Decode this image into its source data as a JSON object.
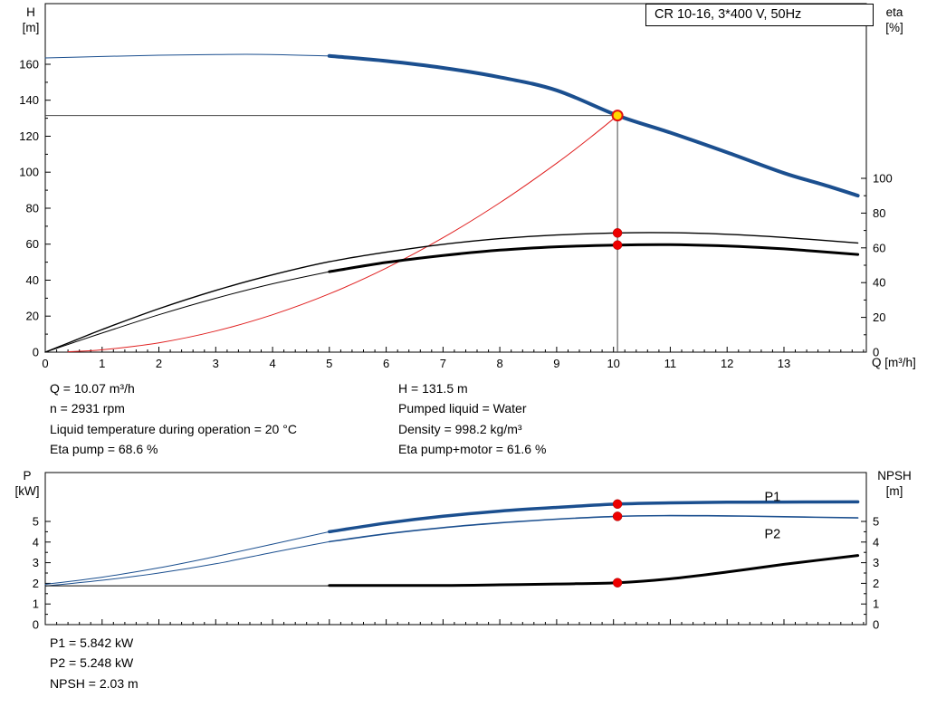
{
  "title_box": "CR 10-16, 3*400 V, 50Hz",
  "info_panel": {
    "left": [
      "Q = 10.07 m³/h",
      "n = 2931 rpm",
      "Liquid temperature during operation = 20 °C",
      "Eta pump = 68.6 %"
    ],
    "right": [
      "H = 131.5 m",
      "Pumped liquid = Water",
      "Density = 998.2 kg/m³",
      "Eta pump+motor = 61.6 %"
    ]
  },
  "results_panel": {
    "lines": [
      "P1 = 5.842 kW",
      "P2 = 5.248 kW",
      "NPSH = 2.03 m"
    ]
  },
  "duty_point": {
    "q_m3h": 10.07,
    "h_m": 131.5,
    "n_rpm": 2931,
    "eta_pump_pct": 68.6,
    "eta_pump_motor_pct": 61.6,
    "p1_kw": 5.842,
    "p2_kw": 5.248,
    "npsh_m": 2.03
  },
  "chart_data": [
    {
      "id": "head",
      "type": "line",
      "title": "CR 10-16, 3*400 V, 50Hz",
      "x_axis": {
        "label": "Q [m³/h]",
        "min": 0,
        "max": 14.45,
        "major_ticks": [
          0,
          1,
          2,
          3,
          4,
          5,
          6,
          7,
          8,
          9,
          10,
          11,
          12,
          13
        ],
        "minor_step": 0.2,
        "minor_max": 14.4,
        "show_labels": true
      },
      "y_left": {
        "name": "H",
        "unit": "[m]",
        "min": 0,
        "max": 193.7,
        "major_ticks": [
          0,
          20,
          40,
          60,
          80,
          100,
          120,
          140,
          160
        ],
        "minor_step": 10,
        "minor_max": 160
      },
      "y_right": {
        "name": "eta",
        "unit": "[%]",
        "min": 0,
        "max": 200.5,
        "major_ticks": [
          0,
          20,
          40,
          60,
          80,
          100
        ],
        "minor_step": 10,
        "minor_max": 100
      },
      "crosshair": {
        "x": 10.07,
        "y": 131.5
      },
      "series": [
        {
          "name": "pump-curve-lead",
          "axis": "left",
          "color": "#1b4f8f",
          "width": 1,
          "points": [
            [
              0,
              163.5
            ],
            [
              1,
              164.3
            ],
            [
              2,
              165.0
            ],
            [
              3,
              165.4
            ],
            [
              3.8,
              165.5
            ],
            [
              5,
              164.6
            ]
          ]
        },
        {
          "name": "pump-curve",
          "axis": "left",
          "color": "#1b4f8f",
          "width": 4,
          "points": [
            [
              5,
              164.6
            ],
            [
              6,
              161.8
            ],
            [
              7,
              158.0
            ],
            [
              8,
              152.8
            ],
            [
              9,
              145.5
            ],
            [
              10.07,
              131.5
            ],
            [
              11,
              122.0
            ],
            [
              12,
              111.0
            ],
            [
              13,
              99.5
            ],
            [
              13.7,
              93.0
            ],
            [
              14.3,
              87.0
            ]
          ]
        },
        {
          "name": "system-curve",
          "axis": "left",
          "color": "#e02020",
          "width": 1,
          "points": [
            [
              0.4,
              0.2
            ],
            [
              1,
              1.3
            ],
            [
              2,
              5.2
            ],
            [
              3,
              11.7
            ],
            [
              4,
              20.8
            ],
            [
              5,
              32.4
            ],
            [
              6,
              46.7
            ],
            [
              7,
              63.6
            ],
            [
              8,
              83.0
            ],
            [
              9,
              105.0
            ],
            [
              9.6,
              119.5
            ],
            [
              10.07,
              131.5
            ]
          ]
        },
        {
          "name": "eta-pump-curve",
          "axis": "right",
          "color": "#000000",
          "width": 1.4,
          "points": [
            [
              0,
              0
            ],
            [
              0.5,
              6.5
            ],
            [
              1,
              13
            ],
            [
              2,
              25
            ],
            [
              3,
              35.5
            ],
            [
              4,
              44.5
            ],
            [
              5,
              52
            ],
            [
              6,
              57.5
            ],
            [
              7,
              62
            ],
            [
              8,
              65.3
            ],
            [
              9,
              67.4
            ],
            [
              10.07,
              68.6
            ],
            [
              11,
              68.7
            ],
            [
              12,
              67.8
            ],
            [
              13,
              66
            ],
            [
              14.3,
              62.8
            ]
          ]
        },
        {
          "name": "eta-total-lead",
          "axis": "right",
          "color": "#000000",
          "width": 1,
          "points": [
            [
              0,
              0
            ],
            [
              0.5,
              5.5
            ],
            [
              1,
              11
            ],
            [
              2,
              21.5
            ],
            [
              3,
              31
            ],
            [
              4,
              39.3
            ],
            [
              5,
              46.3
            ]
          ]
        },
        {
          "name": "eta-total-curve",
          "axis": "right",
          "color": "#000000",
          "width": 3,
          "points": [
            [
              5,
              46.3
            ],
            [
              6,
              51.6
            ],
            [
              7,
              55.6
            ],
            [
              8,
              58.7
            ],
            [
              9,
              60.6
            ],
            [
              10.07,
              61.6
            ],
            [
              11,
              61.8
            ],
            [
              12,
              61.1
            ],
            [
              13,
              59.4
            ],
            [
              14.3,
              56.2
            ]
          ]
        }
      ],
      "labels": [],
      "markers": [
        {
          "name": "duty-point",
          "style": "duty",
          "axis": "left",
          "x": 10.07,
          "y": 131.5
        },
        {
          "name": "eta-pump-point",
          "style": "dot",
          "axis": "right",
          "x": 10.07,
          "y": 68.6
        },
        {
          "name": "eta-total-point",
          "style": "dot",
          "axis": "right",
          "x": 10.07,
          "y": 61.6
        }
      ]
    },
    {
      "id": "power",
      "type": "line",
      "title": "",
      "x_axis": {
        "label": "",
        "min": 0,
        "max": 14.45,
        "major_ticks": [
          0,
          1,
          2,
          3,
          4,
          5,
          6,
          7,
          8,
          9,
          10,
          11,
          12,
          13
        ],
        "minor_step": 0.2,
        "minor_max": 14.4,
        "show_labels": false
      },
      "y_left": {
        "name": "P",
        "unit": "[kW]",
        "min": 0,
        "max": 7.37,
        "major_ticks": [
          0,
          1,
          2,
          3,
          4,
          5
        ],
        "minor_step": 0.5,
        "minor_max": 5
      },
      "y_right": {
        "name": "NPSH",
        "unit": "[m]",
        "min": 0,
        "max": 7.37,
        "major_ticks": [
          0,
          1,
          2,
          3,
          4,
          5
        ],
        "minor_step": 0.5,
        "minor_max": 5
      },
      "series": [
        {
          "name": "p1-lead",
          "axis": "left",
          "color": "#1b4f8f",
          "width": 1,
          "points": [
            [
              0,
              1.95
            ],
            [
              1,
              2.3
            ],
            [
              2,
              2.75
            ],
            [
              3,
              3.3
            ],
            [
              4,
              3.9
            ],
            [
              5,
              4.5
            ]
          ]
        },
        {
          "name": "p1-curve",
          "axis": "left",
          "color": "#1b4f8f",
          "width": 3.5,
          "points": [
            [
              5,
              4.5
            ],
            [
              6,
              4.92
            ],
            [
              7,
              5.25
            ],
            [
              8,
              5.5
            ],
            [
              9,
              5.68
            ],
            [
              10.07,
              5.842
            ],
            [
              11,
              5.9
            ],
            [
              12,
              5.93
            ],
            [
              13,
              5.94
            ],
            [
              14.3,
              5.95
            ]
          ]
        },
        {
          "name": "p2-lead",
          "axis": "left",
          "color": "#1b4f8f",
          "width": 1,
          "points": [
            [
              0,
              1.87
            ],
            [
              1,
              2.15
            ],
            [
              2,
              2.5
            ],
            [
              3,
              2.95
            ],
            [
              4,
              3.5
            ],
            [
              5,
              4.02
            ]
          ]
        },
        {
          "name": "p2-curve",
          "axis": "left",
          "color": "#1b4f8f",
          "width": 1.6,
          "points": [
            [
              5,
              4.02
            ],
            [
              6,
              4.4
            ],
            [
              7,
              4.7
            ],
            [
              8,
              4.93
            ],
            [
              9,
              5.11
            ],
            [
              10.07,
              5.248
            ],
            [
              11,
              5.28
            ],
            [
              12,
              5.27
            ],
            [
              13,
              5.23
            ],
            [
              14.3,
              5.17
            ]
          ]
        },
        {
          "name": "npsh-lead",
          "axis": "right",
          "color": "#000000",
          "width": 1,
          "points": [
            [
              0,
              1.88
            ],
            [
              2.5,
              1.88
            ],
            [
              5,
              1.88
            ]
          ]
        },
        {
          "name": "npsh-curve",
          "axis": "right",
          "color": "#000000",
          "width": 3,
          "points": [
            [
              5,
              1.9
            ],
            [
              7,
              1.9
            ],
            [
              8,
              1.93
            ],
            [
              9,
              1.97
            ],
            [
              10.07,
              2.03
            ],
            [
              11,
              2.22
            ],
            [
              12,
              2.55
            ],
            [
              13,
              2.92
            ],
            [
              14.3,
              3.35
            ]
          ]
        }
      ],
      "labels": [
        {
          "text": "P1",
          "x": 12.8,
          "y": 6.2,
          "axis": "left",
          "color": "#2b62a8"
        },
        {
          "text": "P2",
          "x": 12.8,
          "y": 4.4,
          "axis": "left",
          "color": "#2b62a8"
        }
      ],
      "markers": [
        {
          "name": "p1-point",
          "style": "dot",
          "axis": "left",
          "x": 10.07,
          "y": 5.842
        },
        {
          "name": "p2-point",
          "style": "dot",
          "axis": "left",
          "x": 10.07,
          "y": 5.248
        },
        {
          "name": "npsh-point",
          "style": "dot",
          "axis": "right",
          "x": 10.07,
          "y": 2.03
        }
      ]
    }
  ]
}
